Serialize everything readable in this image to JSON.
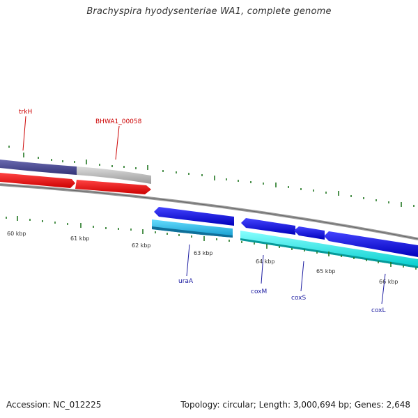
{
  "title": "Brachyspira hyodysenteriae WA1, complete genome",
  "footer": {
    "accession": "Accession: NC_012225",
    "stats": "Topology: circular; Length: 3,000,694 bp; Genes: 2,648"
  },
  "scale_labels": [
    "60 kbp",
    "61 kbp",
    "62 kbp",
    "63 kbp",
    "64 kbp",
    "65 kbp",
    "66 kbp"
  ],
  "genes": [
    {
      "name": "trkH",
      "color": "#cc0000"
    },
    {
      "name": "BHWA1_00058",
      "color": "#cc0000"
    },
    {
      "name": "uraA",
      "color": "#1a1aa0"
    },
    {
      "name": "coxM",
      "color": "#1a1aa0"
    },
    {
      "name": "coxS",
      "color": "#1a1aa0"
    },
    {
      "name": "coxL",
      "color": "#1a1aa0"
    }
  ],
  "colors": {
    "forward_cds": "#ff0000",
    "reverse_cds": "#0000ee",
    "forward_rna_band": "#4a4a90",
    "light_band": "#bbbbbb",
    "cyan_band": "#00eeee",
    "light_blue_band": "#22bbee",
    "backbone": "#888888",
    "tick": "#227722"
  }
}
